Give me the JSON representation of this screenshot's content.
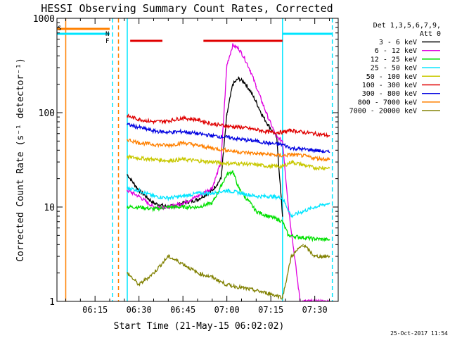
{
  "chart_data": {
    "type": "line",
    "title": "HESSI Observing Summary Count Rates, Corrected",
    "xlabel": "Start Time (21-May-15 06:02:02)",
    "ylabel": "Corrected Count Rate (s⁻¹ detector⁻¹)",
    "y_scale": "log",
    "ylim": [
      1,
      1000
    ],
    "xlim": [
      "06:02",
      "07:38"
    ],
    "x_tick_labels": [
      "06:15",
      "06:30",
      "06:45",
      "07:00",
      "07:15",
      "07:30"
    ],
    "y_tick_labels": [
      "1",
      "10",
      "100",
      "1000"
    ],
    "legend_header": [
      "Det 1,3,5,6,7,9,",
      "Att 0"
    ],
    "legend_position": "right",
    "timestamp": "25-Oct-2017 11:54",
    "flags": {
      "saa_label": "S",
      "night_label": "N",
      "flare_label": "F",
      "saa_interval": [
        "06:02",
        "06:20"
      ],
      "night_intervals": [
        [
          "06:02",
          "06:20"
        ],
        [
          "07:19",
          "07:36"
        ]
      ],
      "flare_intervals": [
        [
          "06:27",
          "06:38"
        ],
        [
          "06:52",
          "07:19"
        ]
      ]
    },
    "vertical_markers": [
      {
        "time": "06:05",
        "color": "#ff8000",
        "style": "solid"
      },
      {
        "time": "06:21",
        "color": "#00e5ff",
        "style": "dashed"
      },
      {
        "time": "06:23",
        "color": "#ff8000",
        "style": "dashed"
      },
      {
        "time": "06:26",
        "color": "#00e5ff",
        "style": "solid"
      },
      {
        "time": "07:19",
        "color": "#00e5ff",
        "style": "solid"
      },
      {
        "time": "07:36",
        "color": "#00e5ff",
        "style": "dashed"
      }
    ],
    "series": [
      {
        "name": "3 - 6 keV",
        "color": "#000000",
        "x": [
          "06:26",
          "06:30",
          "06:35",
          "06:40",
          "06:45",
          "06:50",
          "06:55",
          "06:58",
          "07:00",
          "07:02",
          "07:04",
          "07:06",
          "07:08",
          "07:10",
          "07:12",
          "07:14",
          "07:17",
          "07:19"
        ],
        "y": [
          22,
          15,
          11,
          10,
          11,
          12,
          15,
          20,
          95,
          200,
          230,
          210,
          170,
          130,
          95,
          75,
          55,
          8
        ]
      },
      {
        "name": "6 - 12 keV",
        "color": "#e000e0",
        "x": [
          "06:26",
          "06:30",
          "06:35",
          "06:40",
          "06:45",
          "06:50",
          "06:55",
          "06:58",
          "07:00",
          "07:02",
          "07:04",
          "07:06",
          "07:08",
          "07:10",
          "07:12",
          "07:14",
          "07:17",
          "07:19",
          "07:21",
          "07:25",
          "07:30",
          "07:35"
        ],
        "y": [
          15,
          13,
          10,
          10,
          11,
          13,
          16,
          30,
          320,
          520,
          480,
          380,
          280,
          190,
          130,
          90,
          55,
          50,
          10,
          1,
          1,
          1
        ]
      },
      {
        "name": "12 - 25 keV",
        "color": "#00e000",
        "x": [
          "06:26",
          "06:30",
          "06:35",
          "06:40",
          "06:45",
          "06:50",
          "06:55",
          "07:00",
          "07:02",
          "07:04",
          "07:06",
          "07:08",
          "07:10",
          "07:14",
          "07:17",
          "07:19",
          "07:21",
          "07:25",
          "07:30",
          "07:35"
        ],
        "y": [
          10,
          10,
          9.5,
          10,
          10,
          10,
          11,
          22,
          24,
          16,
          13,
          11,
          9,
          8,
          7.5,
          7,
          5,
          4.8,
          4.6,
          4.5
        ]
      },
      {
        "name": "25 - 50 keV",
        "color": "#00e5ff",
        "x": [
          "06:26",
          "06:30",
          "06:35",
          "06:40",
          "06:45",
          "06:50",
          "06:55",
          "07:00",
          "07:05",
          "07:10",
          "07:15",
          "07:19",
          "07:22",
          "07:26",
          "07:30",
          "07:35"
        ],
        "y": [
          16,
          15,
          13,
          12.5,
          13,
          14,
          14,
          15,
          14,
          13,
          13,
          12.5,
          8,
          9,
          10,
          11
        ]
      },
      {
        "name": "50 - 100 keV",
        "color": "#c8c800",
        "x": [
          "06:26",
          "06:30",
          "06:35",
          "06:40",
          "06:45",
          "06:50",
          "06:55",
          "07:00",
          "07:05",
          "07:10",
          "07:15",
          "07:19",
          "07:22",
          "07:26",
          "07:30",
          "07:35"
        ],
        "y": [
          34,
          33,
          32,
          31,
          32,
          31,
          30,
          29,
          29,
          28,
          27,
          27,
          30,
          28,
          26,
          26
        ]
      },
      {
        "name": "100 - 300 keV",
        "color": "#e00000",
        "x": [
          "06:26",
          "06:30",
          "06:35",
          "06:40",
          "06:45",
          "06:50",
          "06:55",
          "07:00",
          "07:05",
          "07:10",
          "07:15",
          "07:19",
          "07:22",
          "07:26",
          "07:30",
          "07:35"
        ],
        "y": [
          92,
          85,
          80,
          82,
          88,
          84,
          76,
          72,
          70,
          66,
          62,
          62,
          65,
          62,
          60,
          57
        ]
      },
      {
        "name": "300 - 800 keV",
        "color": "#0000e0",
        "x": [
          "06:26",
          "06:30",
          "06:35",
          "06:40",
          "06:45",
          "06:50",
          "06:55",
          "07:00",
          "07:05",
          "07:10",
          "07:15",
          "07:19",
          "07:22",
          "07:26",
          "07:30",
          "07:35"
        ],
        "y": [
          75,
          70,
          64,
          62,
          63,
          60,
          57,
          55,
          52,
          50,
          47,
          46,
          42,
          41,
          40,
          38
        ]
      },
      {
        "name": "800 - 7000 keV",
        "color": "#ff8000",
        "x": [
          "06:26",
          "06:30",
          "06:35",
          "06:40",
          "06:45",
          "06:50",
          "06:55",
          "07:00",
          "07:05",
          "07:10",
          "07:15",
          "07:19",
          "07:22",
          "07:26",
          "07:30",
          "07:35"
        ],
        "y": [
          52,
          48,
          46,
          45,
          48,
          45,
          42,
          40,
          38,
          37,
          36,
          35,
          36,
          35,
          33,
          32
        ]
      },
      {
        "name": "7000 - 20000 keV",
        "color": "#808000",
        "x": [
          "06:26",
          "06:30",
          "06:35",
          "06:40",
          "06:45",
          "06:50",
          "06:55",
          "07:00",
          "07:05",
          "07:10",
          "07:15",
          "07:19",
          "07:22",
          "07:26",
          "07:30",
          "07:35"
        ],
        "y": [
          2,
          1.5,
          2,
          3,
          2.5,
          2,
          1.8,
          1.5,
          1.4,
          1.3,
          1.2,
          1.1,
          3,
          4,
          3,
          3
        ]
      }
    ]
  }
}
